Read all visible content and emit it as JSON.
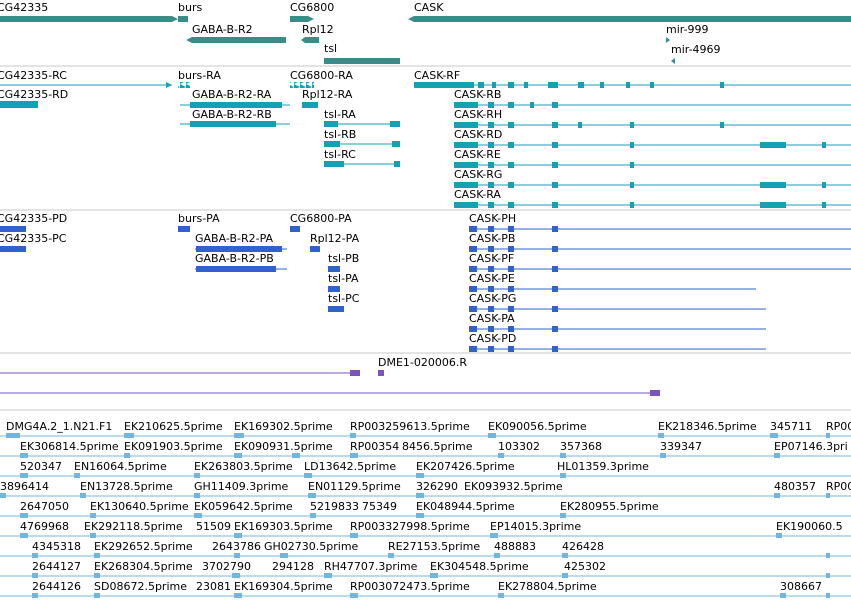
{
  "colors": {
    "gene": "#3a8c89",
    "transcript_ra": "#16a0b4",
    "transcript_pa": "#2f61cf",
    "cdna": "#7a55bd",
    "est": "#74b6db",
    "divider": "#c8c8c8"
  },
  "tracks": {
    "genes": {
      "labels": [
        "CG42335",
        "burs",
        "GABA-B-R2",
        "CG6800",
        "Rpl12",
        "tsl",
        "CASK",
        "mir-999",
        "mir-4969"
      ]
    },
    "transcripts_r": {
      "labels": [
        "CG42335-RC",
        "CG42335-RD",
        "burs-RA",
        "GABA-B-R2-RA",
        "GABA-B-R2-RB",
        "CG6800-RA",
        "Rpl12-RA",
        "tsl-RA",
        "tsl-RB",
        "tsl-RC",
        "CASK-RF",
        "CASK-RB",
        "CASK-RH",
        "CASK-RD",
        "CASK-RE",
        "CASK-RG",
        "CASK-RA"
      ]
    },
    "transcripts_p": {
      "labels": [
        "CG42335-PD",
        "CG42335-PC",
        "burs-PA",
        "GABA-B-R2-PA",
        "GABA-B-R2-PB",
        "CG6800-PA",
        "Rpl12-PA",
        "tsl-PB",
        "tsl-PA",
        "tsl-PC",
        "CASK-PH",
        "CASK-PB",
        "CASK-PF",
        "CASK-PE",
        "CASK-PG",
        "CASK-PA",
        "CASK-PD"
      ]
    },
    "cdna": {
      "labels": [
        "DME1-020006.R"
      ]
    },
    "est": {
      "labels": [
        "DMG4A.2_1.N21.F1",
        "EK210625.5prime",
        "EK169302.5prime",
        "RP003259613.5prime",
        "EK090056.5prime",
        "EK218346.5prime",
        "345711",
        "RP00",
        "EK306814.5prime",
        "EK091903.5prime",
        "EK090931.5prime",
        "RP00354",
        "8456.5prime",
        "103302",
        "357368",
        "339347",
        "EP07146.3pri",
        "520347",
        "EN16064.5prime",
        "EK263803.5prime",
        "LD13642.5prime",
        "EK207426.5prime",
        "HL01359.3prime",
        "3896414",
        "EN13728.5prime",
        "GH11409.3prime",
        "EN01129.5prime",
        "326290",
        "EK093932.5prime",
        "480357",
        "RP00",
        "2647050",
        "EK130640.5prime",
        "EK059642.5prime",
        "5219833",
        "75349",
        "EK048944.5prime",
        "EK280955.5prime",
        "4769968",
        "EK292118.5prime",
        "51509",
        "EK169303.5prime",
        "RP003327998.5prime",
        "EP14015.3prime",
        "EK190060.5",
        "4345318",
        "EK292652.5prime",
        "2643786",
        "GH02730.5prime",
        "RE27153.5prime",
        "488883",
        "426428",
        "2644127",
        "EK268304.5prime",
        "3702790",
        "294128",
        "RH47707.3prime",
        "EK304548.5prime",
        "425302",
        "2644126",
        "SD08672.5prime",
        "23081",
        "EK169304.5prime",
        "RP003072473.5prime",
        "EK278804.5prime",
        "308667"
      ]
    }
  }
}
